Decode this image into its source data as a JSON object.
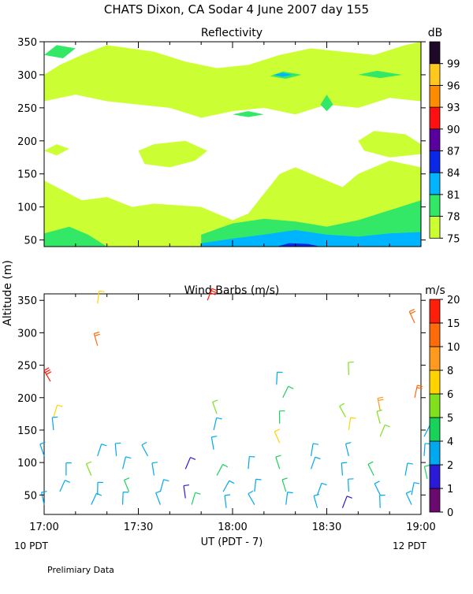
{
  "header": {
    "title": "CHATS Dixon, CA  Sodar    4 June 2007   day 155",
    "footer_note": "Prelimiary Data",
    "x_axis_label": "UT  (PDT - 7)",
    "start_local": "10 PDT",
    "end_local": "12 PDT",
    "shared_y_label": "Altitude (m)"
  },
  "chart_data": [
    {
      "type": "heatmap",
      "title": "Reflectivity",
      "x_ticks": [
        "17:00",
        "17:30",
        "18:00",
        "18:30",
        "19:00"
      ],
      "x_range": [
        "17:00",
        "19:00"
      ],
      "y_ticks": [
        50,
        100,
        150,
        200,
        250,
        300,
        350
      ],
      "ylim": [
        40,
        350
      ],
      "colorbar": {
        "unit": "dB",
        "levels": [
          75,
          78,
          81,
          84,
          87,
          90,
          93,
          96,
          99
        ],
        "colors": [
          "#ccff33",
          "#33e866",
          "#00b4ff",
          "#0a28e8",
          "#5a00a0",
          "#ff1010",
          "#ff8c00",
          "#ffc81e",
          "#1e0a28"
        ]
      },
      "background_level": "below 75",
      "layers": [
        {
          "level": 75,
          "note": "scattered echo regions, dense near 40-140 m and above 250 m"
        },
        {
          "level": 78,
          "note": "band near 40-90 m after 17:50, patches near 300-350 m"
        },
        {
          "level": 81,
          "note": "layer 40-70 m from 17:50 to 19:00"
        },
        {
          "level": 84,
          "note": "thin patch near 45 m around 18:20"
        }
      ]
    },
    {
      "type": "scatter",
      "title": "Wind Barbs (m/s)",
      "x_ticks": [
        "17:00",
        "17:30",
        "18:00",
        "18:30",
        "19:00"
      ],
      "x_range": [
        "17:00",
        "19:00"
      ],
      "y_ticks": [
        50,
        100,
        150,
        200,
        250,
        300,
        350
      ],
      "ylim": [
        20,
        360
      ],
      "colorbar": {
        "unit": "m/s",
        "levels": [
          0,
          1,
          2,
          4,
          5,
          6,
          8,
          10,
          15,
          20
        ],
        "colors": [
          "#6a0a6e",
          "#2a1ad8",
          "#00a8f0",
          "#18d25a",
          "#80e01e",
          "#ffd200",
          "#ff9a1e",
          "#ff6a0a",
          "#ff1e0a"
        ]
      },
      "barb_note": "wind barbs plotted at sampled times and altitudes, color-coded by speed",
      "barbs": [
        {
          "t": "17:02",
          "alt": 225,
          "speed": 20
        },
        {
          "t": "17:17",
          "alt": 345,
          "speed": 6
        },
        {
          "t": "17:17",
          "alt": 280,
          "speed": 12
        },
        {
          "t": "17:52",
          "alt": 350,
          "speed": 15
        },
        {
          "t": "18:37",
          "alt": 235,
          "speed": 5
        },
        {
          "t": "18:58",
          "alt": 315,
          "speed": 12
        },
        {
          "t": "18:58",
          "alt": 200,
          "speed": 10
        },
        {
          "t": "18:47",
          "alt": 180,
          "speed": 8
        },
        {
          "t": "18:16",
          "alt": 200,
          "speed": 4
        },
        {
          "t": "18:14",
          "alt": 220,
          "speed": 3
        },
        {
          "t": "17:55",
          "alt": 175,
          "speed": 5
        },
        {
          "t": "17:03",
          "alt": 170,
          "speed": 6
        },
        {
          "t": "17:03",
          "alt": 150,
          "speed": 3
        },
        {
          "t": "18:36",
          "alt": 170,
          "speed": 5
        },
        {
          "t": "18:37",
          "alt": 150,
          "speed": 6
        },
        {
          "t": "18:47",
          "alt": 160,
          "speed": 5
        },
        {
          "t": "18:47",
          "alt": 140,
          "speed": 5
        },
        {
          "t": "18:15",
          "alt": 160,
          "speed": 4
        },
        {
          "t": "18:15",
          "alt": 130,
          "speed": 6
        },
        {
          "t": "17:54",
          "alt": 150,
          "speed": 3
        },
        {
          "t": "17:54",
          "alt": 120,
          "speed": 3
        },
        {
          "t": "19:01",
          "alt": 140,
          "speed": 3
        },
        {
          "t": "19:01",
          "alt": 110,
          "speed": 2
        },
        {
          "t": "17:00",
          "alt": 110,
          "speed": 3
        },
        {
          "t": "17:17",
          "alt": 110,
          "speed": 3
        },
        {
          "t": "17:23",
          "alt": 110,
          "speed": 3
        },
        {
          "t": "17:33",
          "alt": 110,
          "speed": 3
        },
        {
          "t": "18:25",
          "alt": 110,
          "speed": 3
        },
        {
          "t": "18:37",
          "alt": 110,
          "speed": 3
        },
        {
          "t": "17:45",
          "alt": 90,
          "speed": 1
        },
        {
          "t": "17:07",
          "alt": 80,
          "speed": 3
        },
        {
          "t": "17:15",
          "alt": 80,
          "speed": 5
        },
        {
          "t": "17:25",
          "alt": 90,
          "speed": 3
        },
        {
          "t": "17:35",
          "alt": 80,
          "speed": 3
        },
        {
          "t": "17:55",
          "alt": 80,
          "speed": 4
        },
        {
          "t": "18:05",
          "alt": 90,
          "speed": 3
        },
        {
          "t": "18:15",
          "alt": 90,
          "speed": 4
        },
        {
          "t": "18:25",
          "alt": 90,
          "speed": 3
        },
        {
          "t": "18:35",
          "alt": 80,
          "speed": 3
        },
        {
          "t": "18:45",
          "alt": 80,
          "speed": 4
        },
        {
          "t": "18:55",
          "alt": 80,
          "speed": 3
        },
        {
          "t": "19:02",
          "alt": 75,
          "speed": 4
        },
        {
          "t": "17:05",
          "alt": 55,
          "speed": 3
        },
        {
          "t": "17:17",
          "alt": 50,
          "speed": 3
        },
        {
          "t": "17:27",
          "alt": 55,
          "speed": 4
        },
        {
          "t": "17:37",
          "alt": 55,
          "speed": 3
        },
        {
          "t": "17:45",
          "alt": 45,
          "speed": 1
        },
        {
          "t": "17:57",
          "alt": 55,
          "speed": 3
        },
        {
          "t": "18:07",
          "alt": 55,
          "speed": 3
        },
        {
          "t": "18:17",
          "alt": 55,
          "speed": 4
        },
        {
          "t": "18:27",
          "alt": 50,
          "speed": 3
        },
        {
          "t": "18:37",
          "alt": 55,
          "speed": 3
        },
        {
          "t": "18:47",
          "alt": 50,
          "speed": 3
        },
        {
          "t": "18:57",
          "alt": 50,
          "speed": 3
        },
        {
          "t": "17:00",
          "alt": 35,
          "speed": 3
        },
        {
          "t": "17:15",
          "alt": 35,
          "speed": 3
        },
        {
          "t": "17:25",
          "alt": 35,
          "speed": 3
        },
        {
          "t": "17:37",
          "alt": 35,
          "speed": 3
        },
        {
          "t": "17:47",
          "alt": 35,
          "speed": 4
        },
        {
          "t": "17:58",
          "alt": 30,
          "speed": 3
        },
        {
          "t": "18:07",
          "alt": 35,
          "speed": 3
        },
        {
          "t": "18:17",
          "alt": 35,
          "speed": 3
        },
        {
          "t": "18:27",
          "alt": 30,
          "speed": 3
        },
        {
          "t": "18:35",
          "alt": 30,
          "speed": 1
        },
        {
          "t": "18:47",
          "alt": 30,
          "speed": 3
        },
        {
          "t": "18:57",
          "alt": 35,
          "speed": 3
        }
      ]
    }
  ]
}
